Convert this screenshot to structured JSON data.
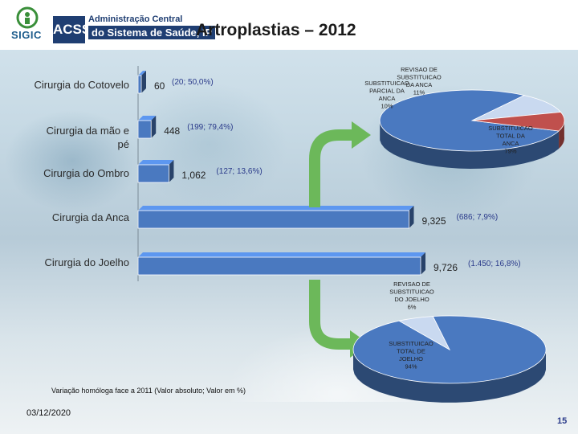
{
  "header": {
    "sigic": "SIGIC",
    "acss": "ACSS",
    "acss_line1": "Administração Central",
    "acss_line2": "do Sistema de Saúde, IP"
  },
  "colors": {
    "bar": "#4a79c0",
    "slice_main": "#4a79c0",
    "slice_partial": "#c0504d",
    "slice_revision": "#c9d9f0",
    "arrow": "#6cb85a"
  },
  "chart_data": [
    {
      "type": "bar",
      "title": "Artroplastias – 2012",
      "orientation": "horizontal",
      "categories": [
        "Cirurgia do Cotovelo",
        "Cirurgia da mão e pé",
        "Cirurgia do Ombro",
        "Cirurgia da Anca",
        "Cirurgia do Joelho"
      ],
      "values": [
        60,
        448,
        1062,
        9325,
        9726
      ],
      "value_labels": [
        "60",
        "448",
        "1,062",
        "9,325",
        "9,726"
      ],
      "variation_labels": [
        "(20; 50,0%)",
        "(199; 79,4%)",
        "(127; 13,6%)",
        "(686; 7,9%)",
        "(1.450; 16,8%)"
      ],
      "note": "Variação homóloga face a 2011 (Valor absoluto; Valor em %)"
    },
    {
      "type": "pie",
      "slices": [
        {
          "label": "SUBSTITUICAO TOTAL DA ANCA",
          "percent": "79%",
          "value": 79
        },
        {
          "label": "REVISAO DE SUBSTITUICAO DA ANCA",
          "percent": "11%",
          "value": 11
        },
        {
          "label": "SUBSTITUICAO PARCIAL DA ANCA",
          "percent": "10%",
          "value": 10
        }
      ]
    },
    {
      "type": "pie",
      "slices": [
        {
          "label": "SUBSTITUICAO TOTAL DE JOELHO",
          "percent": "94%",
          "value": 94
        },
        {
          "label": "REVISAO DE SUBSTITUICAO DO JOELHO",
          "percent": "6%",
          "value": 6
        }
      ]
    }
  ],
  "footer": {
    "date": "03/12/2020",
    "page": "15"
  }
}
